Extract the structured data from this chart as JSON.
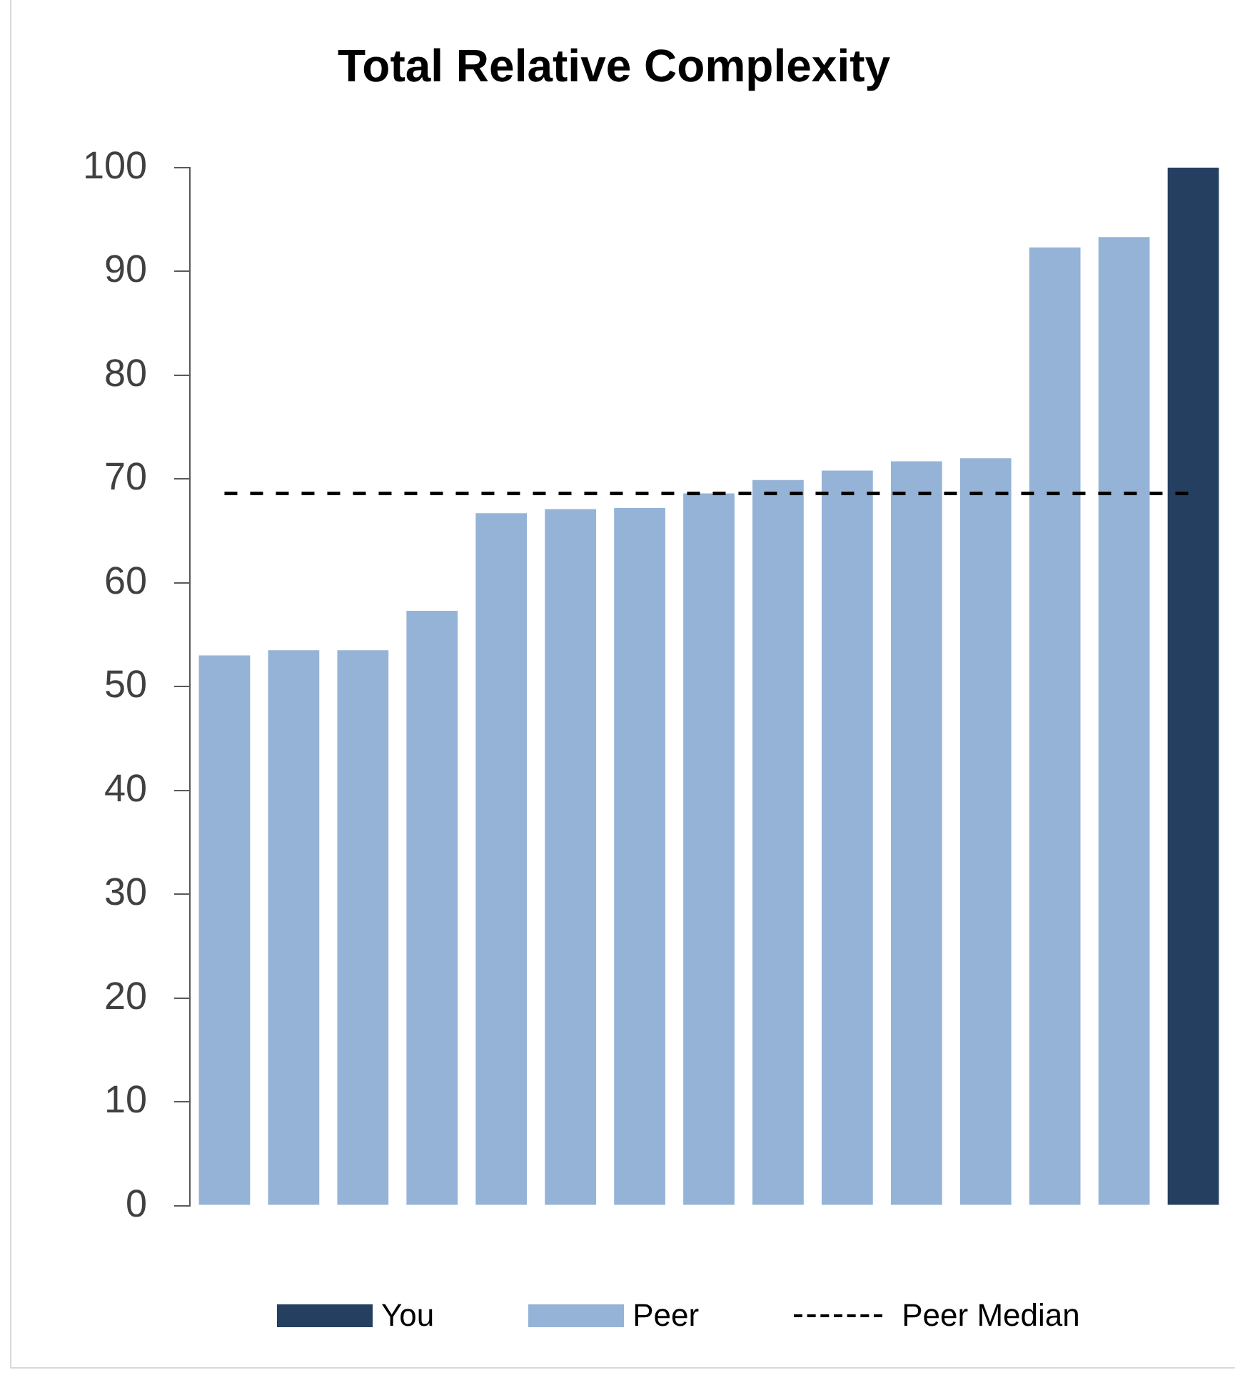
{
  "chart_data": {
    "type": "bar",
    "title": "Total Relative Complexity",
    "categories": [
      null,
      null,
      null,
      null,
      null,
      null,
      null,
      null,
      null,
      null,
      null,
      null,
      null,
      null,
      null
    ],
    "series": [
      {
        "name": "You",
        "color": "#243f60",
        "values": [
          null,
          null,
          null,
          null,
          null,
          null,
          null,
          null,
          null,
          null,
          null,
          null,
          null,
          null,
          100
        ]
      },
      {
        "name": "Peer",
        "color": "#95b3d7",
        "values": [
          53.0,
          53.5,
          53.5,
          57.3,
          66.7,
          67.1,
          67.2,
          68.6,
          69.9,
          70.8,
          71.7,
          72.0,
          92.3,
          93.3,
          null
        ]
      }
    ],
    "ylim": [
      0,
      100
    ],
    "yticks": [
      0,
      10,
      20,
      30,
      40,
      50,
      60,
      70,
      80,
      90,
      100
    ],
    "ref_lines": [
      {
        "axis": "y",
        "value": 68.6,
        "label": "Peer Median",
        "color": "#000000",
        "line_style": "dashed"
      }
    ],
    "legend": "bottom"
  }
}
